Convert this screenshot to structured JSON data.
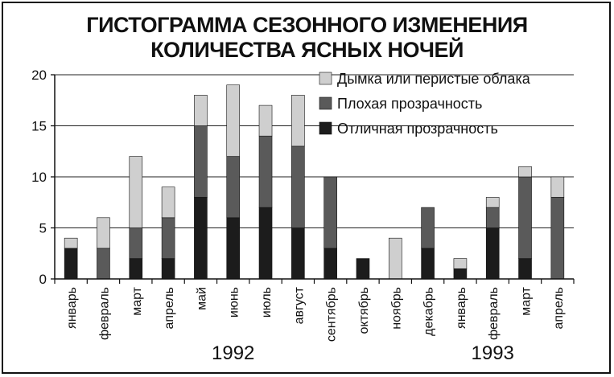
{
  "chart_data": {
    "type": "bar",
    "stacked": true,
    "title": "ГИСТОГРАММА СЕЗОННОГО ИЗМЕНЕНИЯ КОЛИЧЕСТВА ЯСНЫХ НОЧЕЙ",
    "title_lines": [
      "ГИСТОГРАММА СЕЗОННОГО ИЗМЕНЕНИЯ",
      "КОЛИЧЕСТВА ЯСНЫХ НОЧЕЙ"
    ],
    "categories": [
      "январь",
      "февраль",
      "март",
      "апрель",
      "май",
      "июнь",
      "июль",
      "август",
      "сентябрь",
      "октябрь",
      "ноябрь",
      "декабрь",
      "январь",
      "февраль",
      "март",
      "апрель"
    ],
    "year_labels": [
      {
        "label": "1992",
        "category_index": 5.5
      },
      {
        "label": "1993",
        "category_index": 13.5
      }
    ],
    "series": [
      {
        "name": "Отличная прозрачность",
        "color": "#1c1c1c",
        "values": [
          3,
          0,
          2,
          2,
          8,
          6,
          7,
          5,
          3,
          2,
          0,
          3,
          1,
          5,
          2,
          0
        ]
      },
      {
        "name": "Плохая прозрачность",
        "color": "#5a5a5a",
        "values": [
          0,
          3,
          3,
          4,
          7,
          6,
          7,
          8,
          7,
          0,
          0,
          4,
          0,
          2,
          8,
          8
        ]
      },
      {
        "name": "Дымка или перистые облака",
        "color": "#cfcfcf",
        "values": [
          1,
          3,
          7,
          3,
          3,
          7,
          3,
          5,
          0,
          0,
          4,
          0,
          1,
          1,
          1,
          2
        ]
      }
    ],
    "legend_order": [
      "Дымка или перистые облака",
      "Плохая прозрачность",
      "Отличная прозрачность"
    ],
    "legend_position": "top-right",
    "ylim": [
      0,
      20
    ],
    "yticks": [
      0,
      5,
      10,
      15,
      20
    ],
    "grid": true,
    "xlabel": "",
    "ylabel": ""
  }
}
